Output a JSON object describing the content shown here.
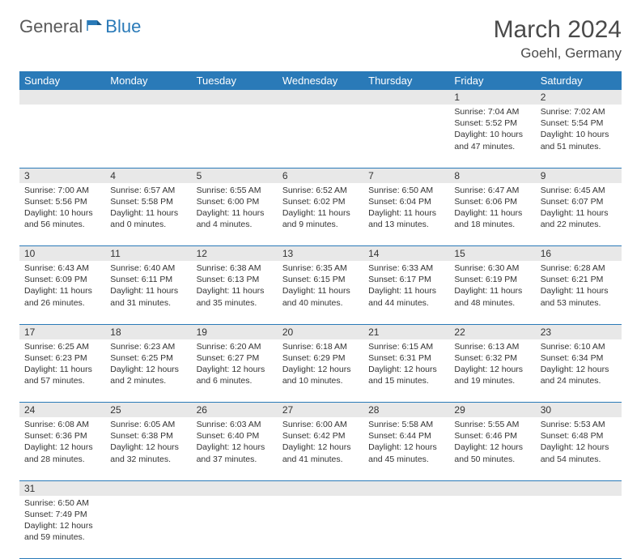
{
  "logo": {
    "general": "General",
    "blue": "Blue"
  },
  "title": "March 2024",
  "location": "Goehl, Germany",
  "colors": {
    "header_bg": "#2a7ab8",
    "header_text": "#ffffff",
    "daynum_bg": "#e8e8e8",
    "row_border": "#2a7ab8",
    "text": "#333333",
    "title_text": "#4a4a4a"
  },
  "dayNames": [
    "Sunday",
    "Monday",
    "Tuesday",
    "Wednesday",
    "Thursday",
    "Friday",
    "Saturday"
  ],
  "weeks": [
    [
      null,
      null,
      null,
      null,
      null,
      {
        "n": "1",
        "sr": "Sunrise: 7:04 AM",
        "ss": "Sunset: 5:52 PM",
        "d1": "Daylight: 10 hours",
        "d2": "and 47 minutes."
      },
      {
        "n": "2",
        "sr": "Sunrise: 7:02 AM",
        "ss": "Sunset: 5:54 PM",
        "d1": "Daylight: 10 hours",
        "d2": "and 51 minutes."
      }
    ],
    [
      {
        "n": "3",
        "sr": "Sunrise: 7:00 AM",
        "ss": "Sunset: 5:56 PM",
        "d1": "Daylight: 10 hours",
        "d2": "and 56 minutes."
      },
      {
        "n": "4",
        "sr": "Sunrise: 6:57 AM",
        "ss": "Sunset: 5:58 PM",
        "d1": "Daylight: 11 hours",
        "d2": "and 0 minutes."
      },
      {
        "n": "5",
        "sr": "Sunrise: 6:55 AM",
        "ss": "Sunset: 6:00 PM",
        "d1": "Daylight: 11 hours",
        "d2": "and 4 minutes."
      },
      {
        "n": "6",
        "sr": "Sunrise: 6:52 AM",
        "ss": "Sunset: 6:02 PM",
        "d1": "Daylight: 11 hours",
        "d2": "and 9 minutes."
      },
      {
        "n": "7",
        "sr": "Sunrise: 6:50 AM",
        "ss": "Sunset: 6:04 PM",
        "d1": "Daylight: 11 hours",
        "d2": "and 13 minutes."
      },
      {
        "n": "8",
        "sr": "Sunrise: 6:47 AM",
        "ss": "Sunset: 6:06 PM",
        "d1": "Daylight: 11 hours",
        "d2": "and 18 minutes."
      },
      {
        "n": "9",
        "sr": "Sunrise: 6:45 AM",
        "ss": "Sunset: 6:07 PM",
        "d1": "Daylight: 11 hours",
        "d2": "and 22 minutes."
      }
    ],
    [
      {
        "n": "10",
        "sr": "Sunrise: 6:43 AM",
        "ss": "Sunset: 6:09 PM",
        "d1": "Daylight: 11 hours",
        "d2": "and 26 minutes."
      },
      {
        "n": "11",
        "sr": "Sunrise: 6:40 AM",
        "ss": "Sunset: 6:11 PM",
        "d1": "Daylight: 11 hours",
        "d2": "and 31 minutes."
      },
      {
        "n": "12",
        "sr": "Sunrise: 6:38 AM",
        "ss": "Sunset: 6:13 PM",
        "d1": "Daylight: 11 hours",
        "d2": "and 35 minutes."
      },
      {
        "n": "13",
        "sr": "Sunrise: 6:35 AM",
        "ss": "Sunset: 6:15 PM",
        "d1": "Daylight: 11 hours",
        "d2": "and 40 minutes."
      },
      {
        "n": "14",
        "sr": "Sunrise: 6:33 AM",
        "ss": "Sunset: 6:17 PM",
        "d1": "Daylight: 11 hours",
        "d2": "and 44 minutes."
      },
      {
        "n": "15",
        "sr": "Sunrise: 6:30 AM",
        "ss": "Sunset: 6:19 PM",
        "d1": "Daylight: 11 hours",
        "d2": "and 48 minutes."
      },
      {
        "n": "16",
        "sr": "Sunrise: 6:28 AM",
        "ss": "Sunset: 6:21 PM",
        "d1": "Daylight: 11 hours",
        "d2": "and 53 minutes."
      }
    ],
    [
      {
        "n": "17",
        "sr": "Sunrise: 6:25 AM",
        "ss": "Sunset: 6:23 PM",
        "d1": "Daylight: 11 hours",
        "d2": "and 57 minutes."
      },
      {
        "n": "18",
        "sr": "Sunrise: 6:23 AM",
        "ss": "Sunset: 6:25 PM",
        "d1": "Daylight: 12 hours",
        "d2": "and 2 minutes."
      },
      {
        "n": "19",
        "sr": "Sunrise: 6:20 AM",
        "ss": "Sunset: 6:27 PM",
        "d1": "Daylight: 12 hours",
        "d2": "and 6 minutes."
      },
      {
        "n": "20",
        "sr": "Sunrise: 6:18 AM",
        "ss": "Sunset: 6:29 PM",
        "d1": "Daylight: 12 hours",
        "d2": "and 10 minutes."
      },
      {
        "n": "21",
        "sr": "Sunrise: 6:15 AM",
        "ss": "Sunset: 6:31 PM",
        "d1": "Daylight: 12 hours",
        "d2": "and 15 minutes."
      },
      {
        "n": "22",
        "sr": "Sunrise: 6:13 AM",
        "ss": "Sunset: 6:32 PM",
        "d1": "Daylight: 12 hours",
        "d2": "and 19 minutes."
      },
      {
        "n": "23",
        "sr": "Sunrise: 6:10 AM",
        "ss": "Sunset: 6:34 PM",
        "d1": "Daylight: 12 hours",
        "d2": "and 24 minutes."
      }
    ],
    [
      {
        "n": "24",
        "sr": "Sunrise: 6:08 AM",
        "ss": "Sunset: 6:36 PM",
        "d1": "Daylight: 12 hours",
        "d2": "and 28 minutes."
      },
      {
        "n": "25",
        "sr": "Sunrise: 6:05 AM",
        "ss": "Sunset: 6:38 PM",
        "d1": "Daylight: 12 hours",
        "d2": "and 32 minutes."
      },
      {
        "n": "26",
        "sr": "Sunrise: 6:03 AM",
        "ss": "Sunset: 6:40 PM",
        "d1": "Daylight: 12 hours",
        "d2": "and 37 minutes."
      },
      {
        "n": "27",
        "sr": "Sunrise: 6:00 AM",
        "ss": "Sunset: 6:42 PM",
        "d1": "Daylight: 12 hours",
        "d2": "and 41 minutes."
      },
      {
        "n": "28",
        "sr": "Sunrise: 5:58 AM",
        "ss": "Sunset: 6:44 PM",
        "d1": "Daylight: 12 hours",
        "d2": "and 45 minutes."
      },
      {
        "n": "29",
        "sr": "Sunrise: 5:55 AM",
        "ss": "Sunset: 6:46 PM",
        "d1": "Daylight: 12 hours",
        "d2": "and 50 minutes."
      },
      {
        "n": "30",
        "sr": "Sunrise: 5:53 AM",
        "ss": "Sunset: 6:48 PM",
        "d1": "Daylight: 12 hours",
        "d2": "and 54 minutes."
      }
    ],
    [
      {
        "n": "31",
        "sr": "Sunrise: 6:50 AM",
        "ss": "Sunset: 7:49 PM",
        "d1": "Daylight: 12 hours",
        "d2": "and 59 minutes."
      },
      null,
      null,
      null,
      null,
      null,
      null
    ]
  ]
}
